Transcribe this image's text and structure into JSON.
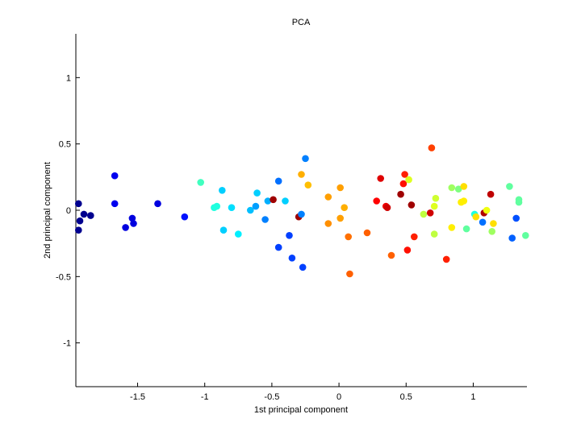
{
  "chart_data": {
    "type": "scatter",
    "title": "PCA",
    "xlabel": "1st principal component",
    "ylabel": "2nd principal component",
    "xlim": [
      -1.96,
      1.4
    ],
    "ylim": [
      -1.33,
      1.33
    ],
    "xticks": [
      -1.5,
      -1,
      -0.5,
      0,
      0.5,
      1
    ],
    "xtick_labels": [
      "-1.5",
      "-1",
      "-0.5",
      "0",
      "0.5",
      "1"
    ],
    "yticks": [
      -1,
      -0.5,
      0,
      0.5,
      1
    ],
    "ytick_labels": [
      "-1",
      "-0.5",
      "0",
      "0.5",
      "1"
    ],
    "grid": false,
    "colormap": "jet",
    "points": [
      {
        "x": -1.94,
        "y": 0.05,
        "color": "#00008f"
      },
      {
        "x": -1.94,
        "y": -0.15,
        "color": "#00008f"
      },
      {
        "x": -1.93,
        "y": -0.08,
        "color": "#00008f"
      },
      {
        "x": -1.9,
        "y": -0.03,
        "color": "#00008f"
      },
      {
        "x": -1.85,
        "y": -0.04,
        "color": "#00008f"
      },
      {
        "x": -1.67,
        "y": 0.26,
        "color": "#0000ef"
      },
      {
        "x": -1.67,
        "y": 0.05,
        "color": "#0000ef"
      },
      {
        "x": -1.59,
        "y": -0.13,
        "color": "#0000df"
      },
      {
        "x": -1.54,
        "y": -0.06,
        "color": "#0000df"
      },
      {
        "x": -1.53,
        "y": -0.1,
        "color": "#0000df"
      },
      {
        "x": -1.35,
        "y": 0.05,
        "color": "#0000df"
      },
      {
        "x": -1.15,
        "y": -0.05,
        "color": "#0010ff"
      },
      {
        "x": -1.03,
        "y": 0.21,
        "color": "#40ffbf"
      },
      {
        "x": -0.93,
        "y": 0.02,
        "color": "#20ffdf"
      },
      {
        "x": -0.91,
        "y": 0.03,
        "color": "#20ffdf"
      },
      {
        "x": -0.87,
        "y": 0.15,
        "color": "#00cfff"
      },
      {
        "x": -0.86,
        "y": -0.15,
        "color": "#00cfff"
      },
      {
        "x": -0.8,
        "y": 0.02,
        "color": "#00dfff"
      },
      {
        "x": -0.75,
        "y": -0.18,
        "color": "#00efff"
      },
      {
        "x": -0.66,
        "y": 0.0,
        "color": "#00bfff"
      },
      {
        "x": -0.62,
        "y": 0.03,
        "color": "#009fff"
      },
      {
        "x": -0.61,
        "y": 0.13,
        "color": "#00cfff"
      },
      {
        "x": -0.55,
        "y": -0.07,
        "color": "#0080ff"
      },
      {
        "x": -0.53,
        "y": 0.07,
        "color": "#00afff"
      },
      {
        "x": -0.49,
        "y": 0.08,
        "color": "#9f0000"
      },
      {
        "x": -0.45,
        "y": 0.22,
        "color": "#0070ff"
      },
      {
        "x": -0.45,
        "y": -0.28,
        "color": "#0040ff"
      },
      {
        "x": -0.4,
        "y": 0.07,
        "color": "#00cfff"
      },
      {
        "x": -0.37,
        "y": -0.19,
        "color": "#0040ff"
      },
      {
        "x": -0.35,
        "y": -0.36,
        "color": "#0040ff"
      },
      {
        "x": -0.3,
        "y": -0.05,
        "color": "#9f0000"
      },
      {
        "x": -0.28,
        "y": -0.03,
        "color": "#0080ff"
      },
      {
        "x": -0.28,
        "y": 0.27,
        "color": "#ffaf00"
      },
      {
        "x": -0.27,
        "y": -0.43,
        "color": "#0040ff"
      },
      {
        "x": -0.25,
        "y": 0.39,
        "color": "#0080ff"
      },
      {
        "x": -0.23,
        "y": 0.19,
        "color": "#ffbf00"
      },
      {
        "x": -0.08,
        "y": 0.1,
        "color": "#ff9f00"
      },
      {
        "x": -0.08,
        "y": -0.1,
        "color": "#ff8f00"
      },
      {
        "x": 0.01,
        "y": 0.17,
        "color": "#ff9f00"
      },
      {
        "x": 0.01,
        "y": -0.06,
        "color": "#ff9f00"
      },
      {
        "x": 0.04,
        "y": 0.02,
        "color": "#ffaf00"
      },
      {
        "x": 0.07,
        "y": -0.2,
        "color": "#ff7000"
      },
      {
        "x": 0.08,
        "y": -0.48,
        "color": "#ff6000"
      },
      {
        "x": 0.21,
        "y": -0.17,
        "color": "#ff6000"
      },
      {
        "x": 0.28,
        "y": 0.07,
        "color": "#ff0000"
      },
      {
        "x": 0.31,
        "y": 0.24,
        "color": "#df0000"
      },
      {
        "x": 0.35,
        "y": 0.03,
        "color": "#ef0000"
      },
      {
        "x": 0.36,
        "y": 0.02,
        "color": "#cf0000"
      },
      {
        "x": 0.39,
        "y": -0.34,
        "color": "#ff6000"
      },
      {
        "x": 0.46,
        "y": 0.12,
        "color": "#9f0000"
      },
      {
        "x": 0.48,
        "y": 0.2,
        "color": "#ff1000"
      },
      {
        "x": 0.49,
        "y": 0.27,
        "color": "#ff2000"
      },
      {
        "x": 0.51,
        "y": -0.3,
        "color": "#ff1000"
      },
      {
        "x": 0.52,
        "y": 0.23,
        "color": "#dfff20"
      },
      {
        "x": 0.54,
        "y": 0.04,
        "color": "#9f0000"
      },
      {
        "x": 0.56,
        "y": -0.2,
        "color": "#ff2000"
      },
      {
        "x": 0.63,
        "y": -0.03,
        "color": "#bfff40"
      },
      {
        "x": 0.68,
        "y": -0.02,
        "color": "#cf0000"
      },
      {
        "x": 0.69,
        "y": 0.47,
        "color": "#ff4000"
      },
      {
        "x": 0.71,
        "y": 0.03,
        "color": "#dfff20"
      },
      {
        "x": 0.71,
        "y": -0.18,
        "color": "#bfff40"
      },
      {
        "x": 0.72,
        "y": 0.09,
        "color": "#cfff30"
      },
      {
        "x": 0.8,
        "y": -0.37,
        "color": "#ff2000"
      },
      {
        "x": 0.84,
        "y": 0.17,
        "color": "#9fff60"
      },
      {
        "x": 0.84,
        "y": -0.13,
        "color": "#ffef00"
      },
      {
        "x": 0.89,
        "y": 0.16,
        "color": "#7fff80"
      },
      {
        "x": 0.91,
        "y": 0.06,
        "color": "#ffef00"
      },
      {
        "x": 0.93,
        "y": 0.18,
        "color": "#ffdf00"
      },
      {
        "x": 0.93,
        "y": 0.07,
        "color": "#ffef00"
      },
      {
        "x": 0.95,
        "y": -0.14,
        "color": "#60ff9f"
      },
      {
        "x": 1.01,
        "y": -0.03,
        "color": "#20ffdf"
      },
      {
        "x": 1.02,
        "y": -0.05,
        "color": "#ffdf00"
      },
      {
        "x": 1.07,
        "y": -0.09,
        "color": "#0070ff"
      },
      {
        "x": 1.08,
        "y": -0.02,
        "color": "#af0000"
      },
      {
        "x": 1.1,
        "y": 0.0,
        "color": "#efff10"
      },
      {
        "x": 1.13,
        "y": 0.12,
        "color": "#bf0000"
      },
      {
        "x": 1.14,
        "y": -0.16,
        "color": "#9fff60"
      },
      {
        "x": 1.15,
        "y": -0.1,
        "color": "#ffdf00"
      },
      {
        "x": 1.27,
        "y": 0.18,
        "color": "#60ff9f"
      },
      {
        "x": 1.29,
        "y": -0.21,
        "color": "#0060ff"
      },
      {
        "x": 1.32,
        "y": -0.06,
        "color": "#0050ff"
      },
      {
        "x": 1.34,
        "y": 0.08,
        "color": "#60ff9f"
      },
      {
        "x": 1.34,
        "y": 0.06,
        "color": "#60ff9f"
      },
      {
        "x": 1.39,
        "y": -0.19,
        "color": "#60ff9f"
      }
    ]
  }
}
